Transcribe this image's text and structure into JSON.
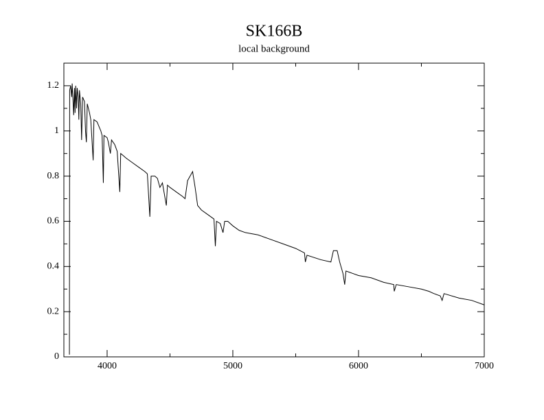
{
  "chart_data": {
    "type": "line",
    "title": "SK166B",
    "subtitle": "local background",
    "color": "#000000",
    "x": [
      3700,
      3702,
      3710,
      3718,
      3722,
      3730,
      3734,
      3740,
      3745,
      3750,
      3757,
      3762,
      3770,
      3775,
      3780,
      3790,
      3797,
      3805,
      3820,
      3828,
      3835,
      3842,
      3860,
      3870,
      3889,
      3895,
      3920,
      3935,
      3950,
      3960,
      3970,
      3975,
      4000,
      4010,
      4026,
      4035,
      4060,
      4080,
      4101,
      4108,
      4130,
      4150,
      4200,
      4250,
      4300,
      4320,
      4340,
      4350,
      4380,
      4400,
      4420,
      4440,
      4471,
      4480,
      4500,
      4550,
      4600,
      4620,
      4640,
      4660,
      4680,
      4700,
      4720,
      4750,
      4800,
      4850,
      4861,
      4870,
      4900,
      4922,
      4935,
      4960,
      5000,
      5050,
      5100,
      5200,
      5300,
      5400,
      5500,
      5570,
      5577,
      5590,
      5700,
      5780,
      5800,
      5830,
      5850,
      5876,
      5890,
      5900,
      5950,
      6000,
      6100,
      6200,
      6280,
      6284,
      6300,
      6400,
      6500,
      6560,
      6600,
      6650,
      6665,
      6680,
      6800,
      6900,
      7000
    ],
    "values": [
      0.01,
      1.18,
      1.2,
      1.15,
      1.21,
      1.12,
      1.07,
      1.19,
      1.08,
      1.2,
      1.1,
      1.19,
      1.15,
      1.05,
      1.18,
      1.12,
      0.96,
      1.15,
      1.13,
      1.0,
      0.95,
      1.12,
      1.08,
      1.05,
      0.87,
      1.05,
      1.04,
      1.02,
      1.0,
      0.98,
      0.77,
      0.98,
      0.97,
      0.95,
      0.9,
      0.96,
      0.94,
      0.91,
      0.73,
      0.9,
      0.89,
      0.88,
      0.86,
      0.84,
      0.82,
      0.81,
      0.62,
      0.8,
      0.8,
      0.79,
      0.75,
      0.77,
      0.67,
      0.76,
      0.75,
      0.73,
      0.71,
      0.7,
      0.78,
      0.8,
      0.82,
      0.75,
      0.67,
      0.65,
      0.63,
      0.61,
      0.49,
      0.6,
      0.59,
      0.55,
      0.6,
      0.6,
      0.58,
      0.56,
      0.55,
      0.54,
      0.52,
      0.5,
      0.48,
      0.46,
      0.42,
      0.45,
      0.43,
      0.42,
      0.47,
      0.47,
      0.42,
      0.37,
      0.32,
      0.38,
      0.37,
      0.36,
      0.35,
      0.33,
      0.32,
      0.29,
      0.32,
      0.31,
      0.3,
      0.29,
      0.28,
      0.27,
      0.25,
      0.28,
      0.26,
      0.25,
      0.23
    ],
    "xlim": [
      3656,
      7000
    ],
    "xticks": [
      4000,
      5000,
      6000,
      7000
    ],
    "xminorticks": [
      4500,
      5500,
      6500
    ],
    "ylim": [
      0,
      1.3
    ],
    "yticks": [
      0,
      0.2,
      0.4,
      0.6,
      0.8,
      1,
      1.2
    ],
    "yminorticks": [
      0.1,
      0.3,
      0.5,
      0.7,
      0.9,
      1.1
    ]
  }
}
